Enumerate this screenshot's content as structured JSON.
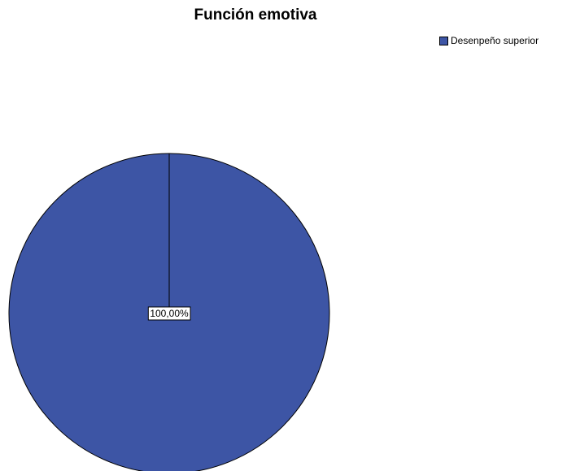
{
  "chart_data": {
    "type": "pie",
    "title": "Función emotiva",
    "slices": [
      {
        "label": "Desenpeño superior",
        "value": 100,
        "color": "#3d55a5"
      }
    ],
    "data_labels": [
      "100,00%"
    ],
    "legend_position": "top-right"
  },
  "colors": {
    "outline": "#000000",
    "label_background": "#ffffff"
  }
}
